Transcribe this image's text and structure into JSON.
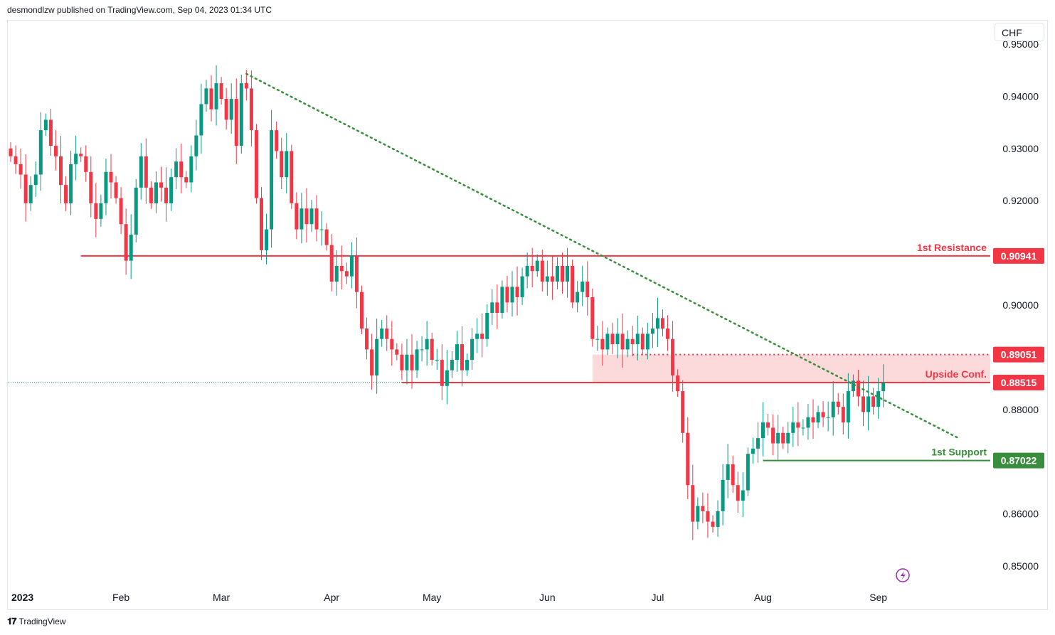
{
  "header": {
    "publisher": "desmondlzw published on TradingView.com, Sep 04, 2023 01:34 UTC"
  },
  "currency": "CHF",
  "footer": {
    "brand": "TradingView"
  },
  "colors": {
    "up": "#089981",
    "down": "#f23645",
    "resistance": "#f23645",
    "support": "#388e3c",
    "trend": "#388e3c",
    "zone": "#fbd2d3",
    "axis_text": "#131722",
    "grid": "#ffffff"
  },
  "chart_data": {
    "type": "candlestick",
    "title": "",
    "ylim": [
      0.8455,
      0.952
    ],
    "y_ticks": [
      0.95,
      0.94,
      0.93,
      0.92,
      0.9,
      0.88,
      0.86,
      0.85
    ],
    "y_tick_labels": [
      "0.95000",
      "0.94000",
      "0.93000",
      "0.92000",
      "0.90000",
      "0.88000",
      "0.86000",
      "0.85000"
    ],
    "x_labels": [
      {
        "label": "2023",
        "i": 0,
        "bold": true
      },
      {
        "label": "Feb",
        "i": 22
      },
      {
        "label": "Mar",
        "i": 42
      },
      {
        "label": "Apr",
        "i": 64
      },
      {
        "label": "May",
        "i": 84
      },
      {
        "label": "Jun",
        "i": 107
      },
      {
        "label": "Jul",
        "i": 129
      },
      {
        "label": "Aug",
        "i": 150
      },
      {
        "label": "Sep",
        "i": 173
      }
    ],
    "levels": [
      {
        "name": "1st Resistance",
        "value": 0.90941,
        "label": "0.90941",
        "color": "#f23645",
        "start_i": 14,
        "style": "solid"
      },
      {
        "name": "Upside Conf.",
        "value": 0.88515,
        "label": "0.88515",
        "color": "#f23645",
        "start_i": 78,
        "style": "solid"
      },
      {
        "name": "",
        "value": 0.89051,
        "label": "0.89051",
        "color": "#f23645",
        "start_i": 124,
        "style": "dotted"
      },
      {
        "name": "1st Support",
        "value": 0.87022,
        "label": "0.87022",
        "color": "#388e3c",
        "start_i": 150,
        "style": "solid"
      }
    ],
    "zone": {
      "from": 0.88515,
      "to": 0.89051,
      "start_i": 116
    },
    "trendline": {
      "i1": 47,
      "v1": 0.9443,
      "i2": 189,
      "v2": 0.8745
    },
    "last_price": 0.8852,
    "closes": [
      0.9285,
      0.927,
      0.925,
      0.9195,
      0.923,
      0.925,
      0.9335,
      0.9355,
      0.9305,
      0.9285,
      0.923,
      0.9195,
      0.927,
      0.929,
      0.9285,
      0.9255,
      0.9195,
      0.9165,
      0.9195,
      0.9255,
      0.9235,
      0.9205,
      0.9155,
      0.9085,
      0.9135,
      0.9225,
      0.9285,
      0.9225,
      0.9195,
      0.9235,
      0.9225,
      0.9195,
      0.9245,
      0.9275,
      0.9245,
      0.9235,
      0.9285,
      0.9325,
      0.9385,
      0.9415,
      0.9375,
      0.9425,
      0.9395,
      0.9355,
      0.9395,
      0.9305,
      0.9425,
      0.9415,
      0.9335,
      0.9205,
      0.9105,
      0.9145,
      0.9335,
      0.9295,
      0.9245,
      0.9295,
      0.9195,
      0.9145,
      0.9185,
      0.9155,
      0.9185,
      0.9145,
      0.9145,
      0.9115,
      0.9045,
      0.9075,
      0.9065,
      0.9055,
      0.9095,
      0.9025,
      0.8955,
      0.8915,
      0.8865,
      0.8935,
      0.8955,
      0.8935,
      0.8915,
      0.8905,
      0.8875,
      0.8905,
      0.8875,
      0.8915,
      0.8915,
      0.8935,
      0.8895,
      0.8895,
      0.8845,
      0.8875,
      0.8895,
      0.8925,
      0.8875,
      0.8895,
      0.8935,
      0.8945,
      0.8935,
      0.8985,
      0.9005,
      0.8985,
      0.9035,
      0.9005,
      0.9035,
      0.9015,
      0.9055,
      0.9075,
      0.9065,
      0.9085,
      0.9045,
      0.9055,
      0.9045,
      0.9075,
      0.9045,
      0.9075,
      0.9005,
      0.9025,
      0.9045,
      0.9015,
      0.8935,
      0.8935,
      0.8915,
      0.8945,
      0.8925,
      0.8945,
      0.8915,
      0.8935,
      0.8925,
      0.8945,
      0.8915,
      0.8945,
      0.8955,
      0.8975,
      0.8955,
      0.8935,
      0.8865,
      0.8835,
      0.8755,
      0.8655,
      0.8585,
      0.8615,
      0.8605,
      0.8585,
      0.8575,
      0.8605,
      0.8665,
      0.8695,
      0.8655,
      0.8625,
      0.8645,
      0.8715,
      0.8725,
      0.8745,
      0.8775,
      0.8765,
      0.8735,
      0.8755,
      0.8735,
      0.8755,
      0.8775,
      0.8765,
      0.8765,
      0.8785,
      0.8775,
      0.8795,
      0.8785,
      0.8785,
      0.8815,
      0.8805,
      0.8775,
      0.8835,
      0.8855,
      0.8825,
      0.8795,
      0.8825,
      0.8805,
      0.8835,
      0.8852
    ]
  }
}
